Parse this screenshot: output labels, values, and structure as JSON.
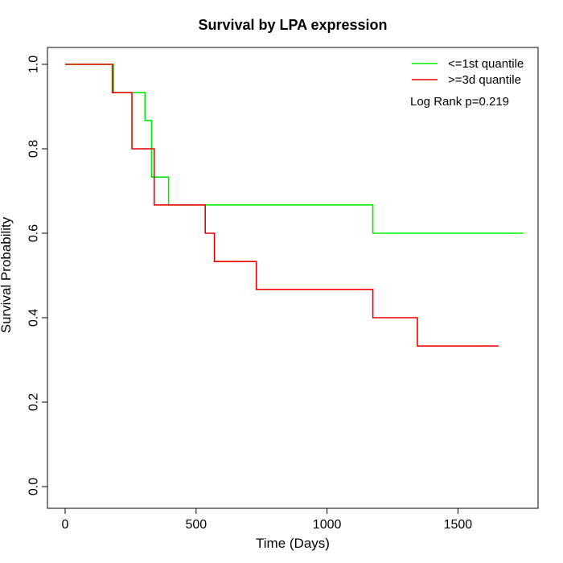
{
  "chart_data": {
    "type": "line",
    "title": "Survival by LPA expression",
    "xlabel": "Time (Days)",
    "ylabel": "Survival Probability",
    "xlim": [
      0,
      1750
    ],
    "ylim": [
      0,
      1
    ],
    "xticks": [
      0,
      500,
      1000,
      1500
    ],
    "yticks": [
      0.0,
      0.2,
      0.4,
      0.6,
      0.8,
      1.0
    ],
    "xtick_labels": [
      "0",
      "500",
      "1000",
      "1500"
    ],
    "ytick_labels": [
      "0.0",
      "0.2",
      "0.4",
      "0.6",
      "0.8",
      "1.0"
    ],
    "grid": false,
    "legend_position": "top-right",
    "annotation": "Log Rank p=0.219",
    "series": [
      {
        "name": "<=1st quantile",
        "color": "#00ee00",
        "step": true,
        "x": [
          0,
          185,
          305,
          330,
          395,
          1175,
          1750
        ],
        "y": [
          1.0,
          0.933,
          0.867,
          0.733,
          0.667,
          0.6,
          0.6
        ]
      },
      {
        "name": ">=3d quantile",
        "color": "#ee0000",
        "step": true,
        "x": [
          0,
          180,
          255,
          340,
          535,
          570,
          730,
          1175,
          1345,
          1655
        ],
        "y": [
          1.0,
          0.933,
          0.8,
          0.667,
          0.6,
          0.533,
          0.467,
          0.4,
          0.333,
          0.333
        ]
      }
    ]
  }
}
